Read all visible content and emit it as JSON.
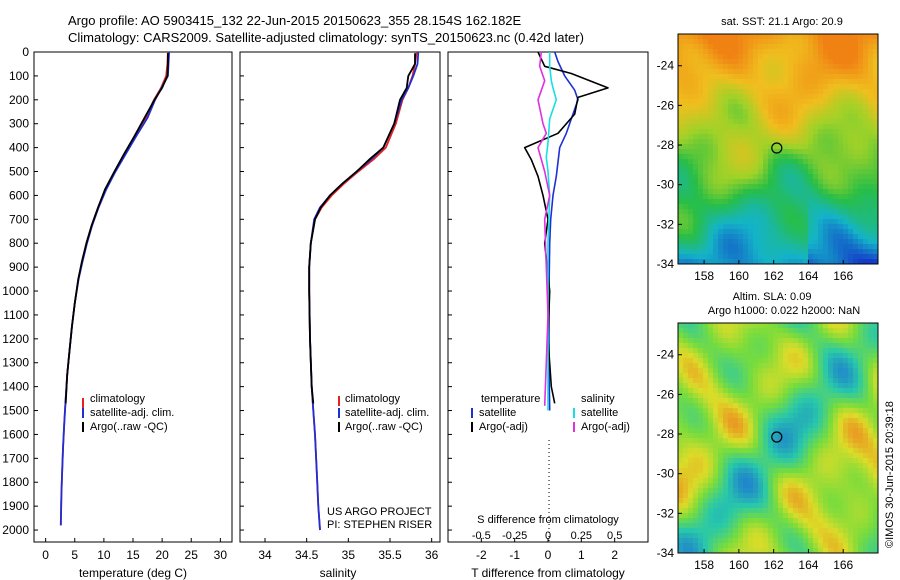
{
  "header": {
    "line1": "Argo profile: AO 5903415_132 22-Jun-2015 20150623_355 28.154S 162.182E",
    "line2": "Climatology: CARS2009. Satellite-adjusted climatology: synTS_20150623.nc (0.42d later)"
  },
  "colors": {
    "climatology": "#e8211f",
    "satellite": "#1f2fd6",
    "argo": "#000000",
    "salinity_satellite": "#17e0e0",
    "salinity_argo": "#e030e0"
  },
  "chart_data": [
    {
      "type": "line",
      "id": "temperature",
      "xlabel": "temperature (deg C)",
      "ylabel": "",
      "xlim": [
        -2,
        32
      ],
      "ylim": [
        2050,
        0
      ],
      "xticks": [
        0,
        5,
        10,
        15,
        20,
        25,
        30
      ],
      "yticks": [
        0,
        100,
        200,
        300,
        400,
        500,
        600,
        700,
        800,
        900,
        1000,
        1100,
        1200,
        1300,
        1400,
        1500,
        1600,
        1700,
        1800,
        1900,
        2000
      ],
      "legend": [
        "climatology",
        "satellite-adj. clim.",
        "Argo(..raw -QC)"
      ],
      "legend_position": "lower-center",
      "series": [
        {
          "name": "climatology",
          "x": [
            21.0,
            20.9,
            20.7,
            19.8,
            18.6,
            17.2,
            15.4,
            13.7,
            11.9,
            10.3,
            9.0,
            7.9,
            7.0,
            6.3,
            5.6,
            5.0,
            4.5,
            4.1,
            3.7,
            3.45,
            3.2,
            3.0,
            2.85,
            2.7,
            2.6
          ],
          "y": [
            0,
            50,
            100,
            150,
            200,
            275,
            350,
            425,
            500,
            575,
            650,
            725,
            800,
            875,
            950,
            1050,
            1150,
            1250,
            1350,
            1450,
            1550,
            1650,
            1750,
            1850,
            1980
          ]
        },
        {
          "name": "satellite-adj. clim.",
          "x": [
            21.2,
            21.1,
            21.0,
            19.9,
            18.8,
            17.5,
            15.6,
            13.8,
            12.0,
            10.4,
            9.1,
            8.0,
            7.1,
            6.35,
            5.65,
            5.0,
            4.5,
            4.1,
            3.7,
            3.45,
            3.2,
            3.0,
            2.85,
            2.7,
            2.6
          ],
          "y": [
            0,
            50,
            100,
            150,
            200,
            275,
            350,
            425,
            500,
            575,
            650,
            725,
            800,
            875,
            950,
            1050,
            1150,
            1250,
            1350,
            1450,
            1550,
            1650,
            1750,
            1850,
            1980
          ]
        },
        {
          "name": "Argo(..raw -QC)",
          "x": [
            21.0,
            21.0,
            20.9,
            20.0,
            18.7,
            17.0,
            15.3,
            13.5,
            11.8,
            10.2,
            9.0,
            7.9,
            7.0,
            6.25,
            5.6,
            5.0,
            4.5,
            4.1,
            3.7,
            3.45
          ],
          "y": [
            5,
            50,
            100,
            150,
            200,
            275,
            350,
            425,
            500,
            575,
            650,
            725,
            800,
            875,
            950,
            1050,
            1150,
            1250,
            1350,
            1470
          ]
        }
      ]
    },
    {
      "type": "line",
      "id": "salinity",
      "xlabel": "salinity",
      "ylabel": "",
      "xlim": [
        33.7,
        36.1
      ],
      "ylim": [
        2050,
        0
      ],
      "xticks": [
        34,
        34.5,
        35,
        35.5,
        36
      ],
      "legend": [
        "climatology",
        "satellite-adj. clim.",
        "Argo(..raw -QC)"
      ],
      "legend_position": "lower-right",
      "annotation": [
        "US ARGO PROJECT",
        "PI: STEPHEN RISER"
      ],
      "series": [
        {
          "name": "climatology",
          "x": [
            35.82,
            35.8,
            35.77,
            35.72,
            35.65,
            35.57,
            35.45,
            35.3,
            35.12,
            34.95,
            34.8,
            34.68,
            34.6,
            34.55,
            34.53,
            34.53,
            34.54,
            34.56,
            34.58,
            34.6,
            34.62,
            34.64,
            34.66
          ],
          "y": [
            0,
            50,
            100,
            150,
            200,
            300,
            400,
            450,
            500,
            550,
            600,
            650,
            700,
            800,
            900,
            1000,
            1200,
            1400,
            1500,
            1600,
            1750,
            1900,
            2000
          ]
        },
        {
          "name": "satellite-adj. clim.",
          "x": [
            35.84,
            35.83,
            35.78,
            35.72,
            35.64,
            35.55,
            35.42,
            35.27,
            35.1,
            34.93,
            34.78,
            34.66,
            34.59,
            34.55,
            34.53,
            34.53,
            34.54,
            34.56,
            34.58,
            34.6,
            34.62,
            34.64,
            34.66
          ],
          "y": [
            0,
            50,
            100,
            150,
            200,
            300,
            400,
            450,
            500,
            550,
            600,
            650,
            700,
            800,
            900,
            1000,
            1200,
            1400,
            1500,
            1600,
            1750,
            1900,
            2000
          ]
        },
        {
          "name": "Argo(..raw -QC)",
          "x": [
            35.8,
            35.8,
            35.72,
            35.7,
            35.62,
            35.55,
            35.42,
            35.25,
            35.1,
            34.93,
            34.78,
            34.67,
            34.6,
            34.55,
            34.53,
            34.53,
            34.54,
            34.56,
            34.58
          ],
          "y": [
            5,
            50,
            100,
            150,
            200,
            300,
            400,
            450,
            500,
            550,
            600,
            650,
            700,
            800,
            900,
            1000,
            1200,
            1400,
            1470
          ]
        }
      ]
    },
    {
      "type": "line",
      "id": "difference",
      "xlabel": "T difference from climatology",
      "xlabel2": "S difference from climatology",
      "xlim": [
        -3,
        3
      ],
      "ylim": [
        2050,
        0
      ],
      "xticks_T": [
        -2,
        -1,
        0,
        1,
        2
      ],
      "xticks_S": [
        "-0.5",
        "-0.25",
        "0",
        "0.25",
        "0.5"
      ],
      "legend_temperature_title": "temperature",
      "legend_salinity_title": "salinity",
      "legend_temperature": [
        "satellite",
        "Argo(-adj)"
      ],
      "legend_salinity": [
        "satellite",
        "Argo(-adj)"
      ],
      "legend_position": "lower-center",
      "series": [
        {
          "name": "T satellite",
          "x": [
            0.2,
            0.3,
            0.5,
            0.8,
            0.9,
            0.7,
            0.55,
            0.35,
            0.3,
            0.25,
            0.15,
            0.08,
            0.05,
            0.03,
            0.03,
            0.04,
            0.05
          ],
          "y": [
            0,
            40,
            100,
            160,
            200,
            280,
            340,
            400,
            460,
            520,
            600,
            700,
            800,
            1000,
            1200,
            1400,
            1500
          ]
        },
        {
          "name": "T Argo(-adj)",
          "x": [
            -0.3,
            -0.1,
            0.7,
            1.8,
            0.9,
            0.8,
            0.3,
            -0.7,
            -0.5,
            -0.3,
            -0.15,
            0.0,
            -0.1,
            0.05,
            0.0,
            0.1,
            0.2
          ],
          "y": [
            0,
            60,
            90,
            150,
            190,
            260,
            340,
            400,
            450,
            520,
            600,
            700,
            800,
            1000,
            1200,
            1400,
            1470
          ]
        },
        {
          "name": "S satellite",
          "x": [
            0.05,
            0.05,
            0.1,
            0.15,
            0.25,
            0.05,
            0.0,
            -0.05,
            0.0,
            0.05,
            0.0,
            0.0,
            0.0,
            0.0
          ],
          "y": [
            0,
            60,
            120,
            150,
            200,
            280,
            380,
            440,
            500,
            600,
            800,
            1000,
            1200,
            1500
          ]
        },
        {
          "name": "S Argo(-adj)",
          "x": [
            -0.2,
            -0.25,
            -0.1,
            -0.3,
            -0.15,
            -0.05,
            -0.3,
            -0.1,
            0.05,
            -0.1,
            -0.05,
            0.0,
            -0.05,
            -0.1
          ],
          "y": [
            0,
            60,
            120,
            200,
            300,
            340,
            400,
            500,
            600,
            700,
            900,
            1100,
            1300,
            1480
          ]
        }
      ]
    },
    {
      "type": "heatmap",
      "id": "sst-map",
      "title": "sat. SST: 21.1  Argo: 20.9",
      "xlim": [
        156.5,
        168
      ],
      "ylim": [
        -34,
        -22.4
      ],
      "xticks": [
        158,
        160,
        162,
        164,
        166
      ],
      "yticks": [
        -24,
        -26,
        -28,
        -30,
        -32,
        -34
      ],
      "marker": {
        "lon": 162.18,
        "lat": -28.15
      }
    },
    {
      "type": "heatmap",
      "id": "sla-map",
      "title": "Altim. SLA: 0.09",
      "subtitle": "Argo h1000: 0.022 h2000: NaN",
      "xlim": [
        156.5,
        168
      ],
      "ylim": [
        -34,
        -22.4
      ],
      "xticks": [
        158,
        160,
        162,
        164,
        166
      ],
      "yticks": [
        -24,
        -26,
        -28,
        -30,
        -32,
        -34
      ],
      "marker": {
        "lon": 162.18,
        "lat": -28.15
      }
    }
  ],
  "footer": {
    "credit": "©IMOS 30-Jun-2015 20:39:18"
  }
}
